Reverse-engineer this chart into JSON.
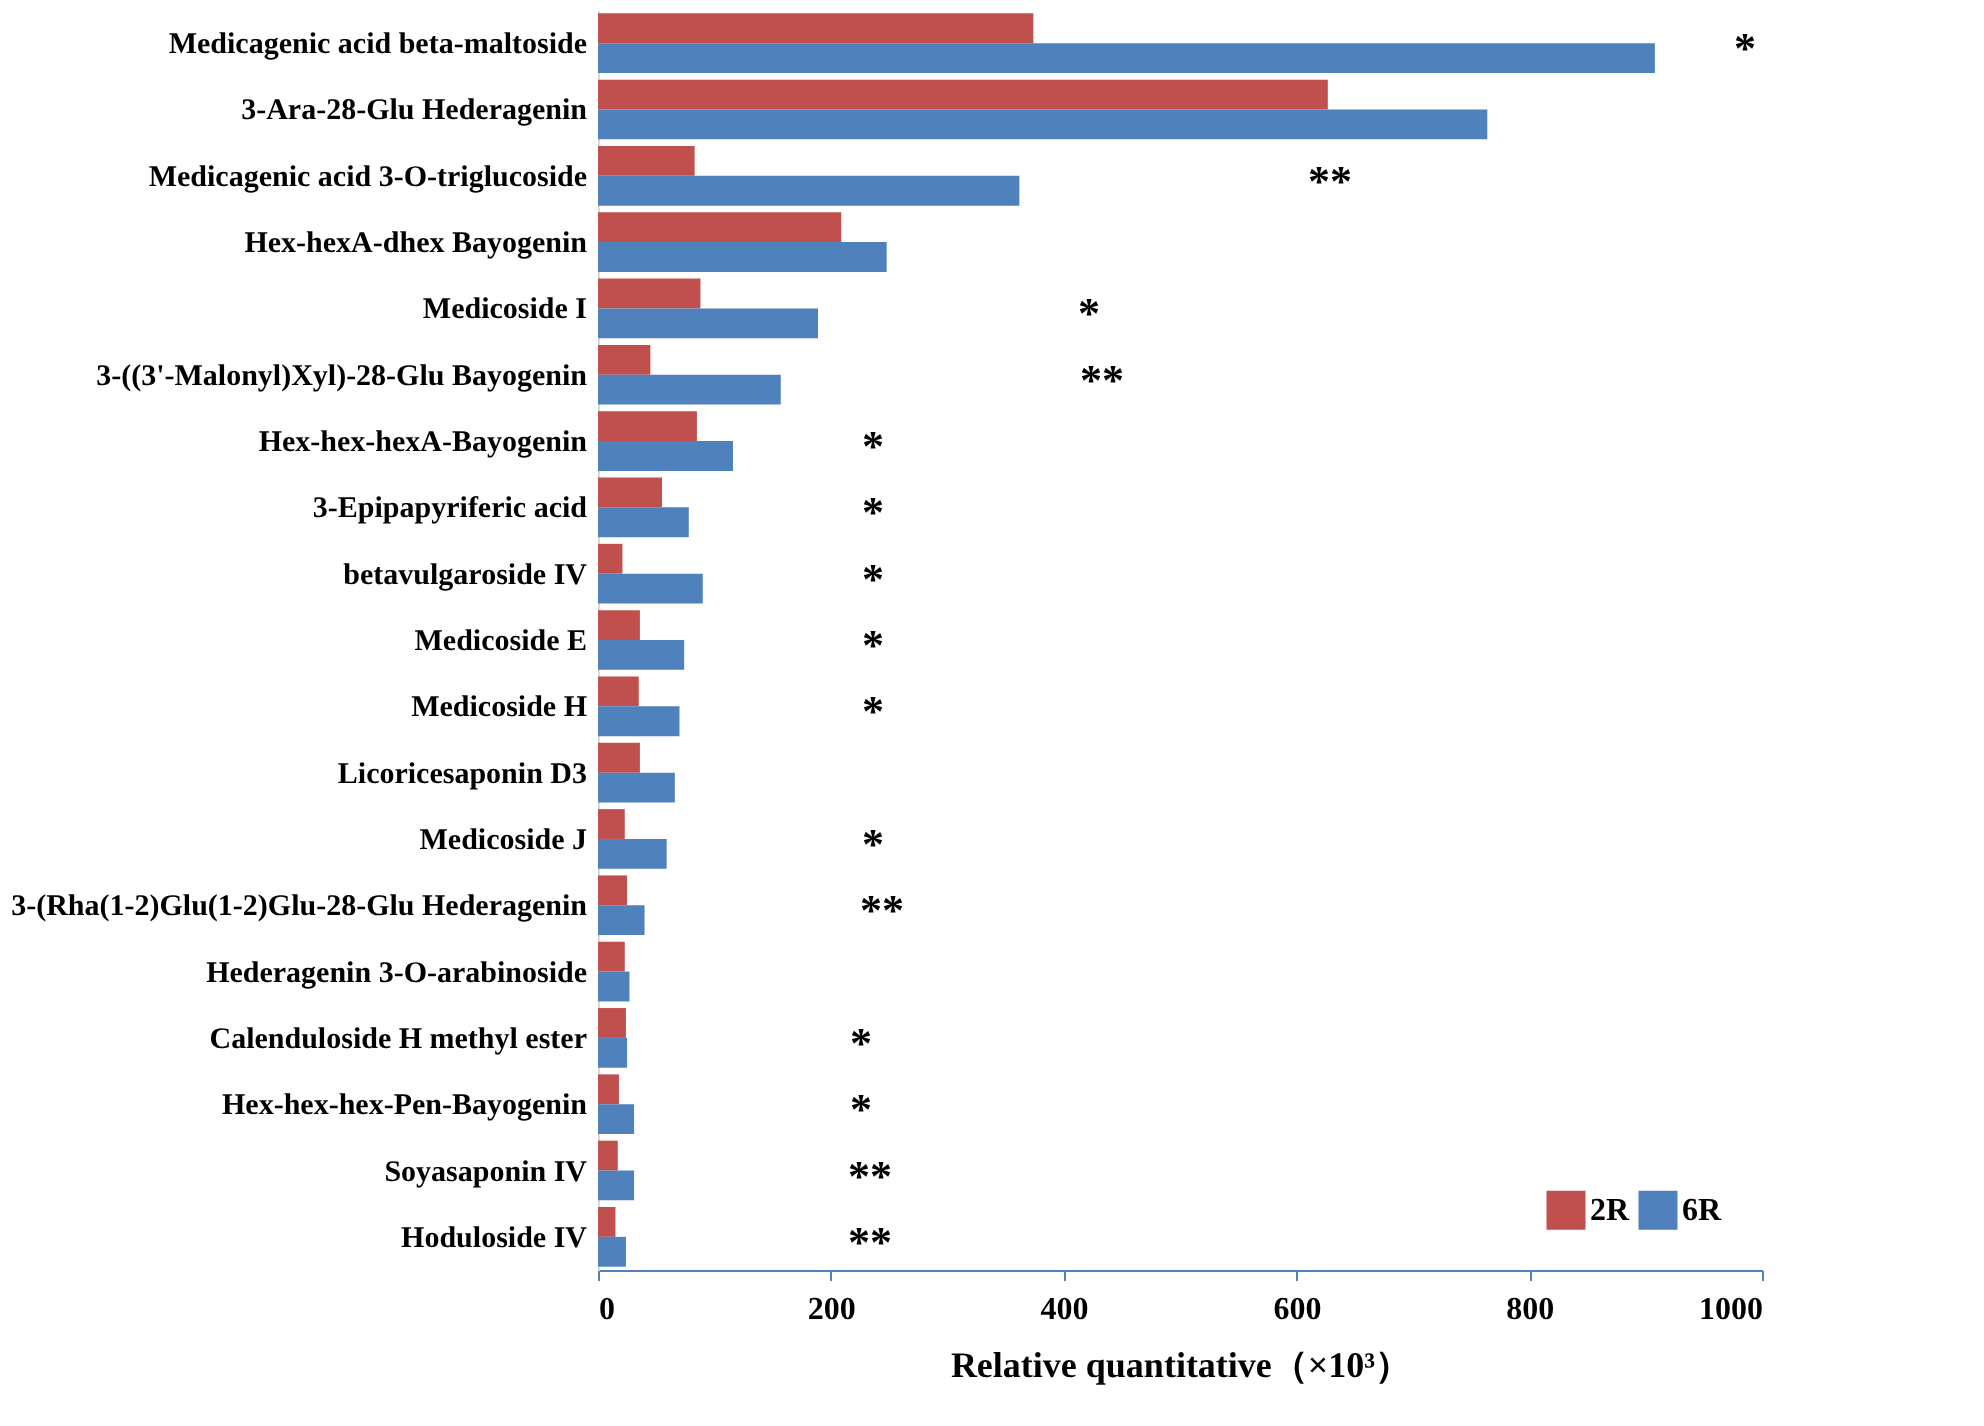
{
  "chart_data": {
    "type": "bar",
    "orientation": "horizontal",
    "categories": [
      "Medicagenic acid beta-maltoside",
      "3-Ara-28-Glu Hederagenin",
      "Medicagenic acid 3-O-triglucoside",
      "Hex-hexA-dhex Bayogenin",
      "Medicoside I",
      "3-((3'-Malonyl)Xyl)-28-Glu Bayogenin",
      "Hex-hex-hexA-Bayogenin",
      "3-Epipapyriferic acid",
      "betavulgaroside IV",
      "Medicoside E",
      "Medicoside H",
      "Licoricesaponin D3",
      "Medicoside J",
      "3-(Rha(1-2)Glu(1-2)Glu-28-Glu Hederagenin",
      "Hederagenin 3-O-arabinoside",
      "Calenduloside H methyl ester",
      "Hex-hex-hex-Pen-Bayogenin",
      "Soyasaponin IV",
      "Hoduloside IV"
    ],
    "series": [
      {
        "name": "2R",
        "color": "#c0504d",
        "values": [
          374,
          627,
          83,
          209,
          88,
          45,
          85,
          55,
          21,
          36,
          35,
          36,
          23,
          25,
          23,
          24,
          18,
          17,
          15
        ]
      },
      {
        "name": "6R",
        "color": "#4f81bd",
        "values": [
          908,
          764,
          362,
          248,
          189,
          157,
          116,
          78,
          90,
          74,
          70,
          66,
          59,
          40,
          27,
          25,
          31,
          31,
          24
        ]
      }
    ],
    "xlabel": "Relative quantitative（×10³）",
    "xlim": [
      0,
      1000
    ],
    "xticks": [
      0,
      200,
      400,
      600,
      800,
      1000
    ],
    "grid": false,
    "legend": "bottom right",
    "annotations": [
      "*",
      "**",
      "*",
      "**",
      "*",
      "*",
      "*",
      "*",
      "*",
      "*",
      "**",
      "*",
      "*",
      "**",
      "**"
    ]
  }
}
